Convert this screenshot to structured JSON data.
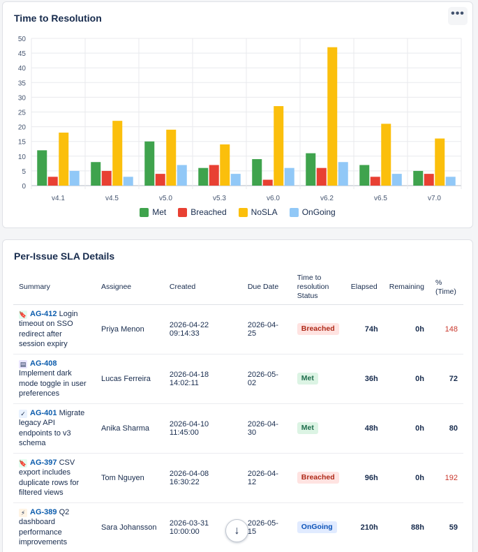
{
  "chart_card": {
    "title": "Time to Resolution",
    "more_label": "•••"
  },
  "chart_data": {
    "type": "bar",
    "title": "Time to Resolution",
    "categories": [
      "v4.1",
      "v4.5",
      "v5.0",
      "v5.3",
      "v6.0",
      "v6.2",
      "v6.5",
      "v7.0"
    ],
    "series": [
      {
        "name": "Met",
        "color": "#3fa34d",
        "values": [
          12,
          8,
          15,
          6,
          9,
          11,
          7,
          5
        ]
      },
      {
        "name": "Breached",
        "color": "#e84033",
        "values": [
          3,
          5,
          4,
          7,
          2,
          6,
          3,
          4
        ]
      },
      {
        "name": "NoSLA",
        "color": "#fbbf0c",
        "values": [
          18,
          22,
          19,
          14,
          27,
          47,
          21,
          16
        ]
      },
      {
        "name": "OnGoing",
        "color": "#91c8f7",
        "values": [
          5,
          3,
          7,
          4,
          6,
          8,
          4,
          3
        ]
      }
    ],
    "yticks": [
      0,
      5,
      10,
      15,
      20,
      25,
      30,
      35,
      40,
      45,
      50
    ],
    "ylim": [
      0,
      50
    ],
    "grid": true,
    "legend": "bottom"
  },
  "table_card": {
    "title": "Per-Issue SLA Details",
    "headers": {
      "summary": "Summary",
      "assignee": "Assignee",
      "created": "Created",
      "due": "Due Date",
      "status_line1": "Time to",
      "status_line2": "resolution",
      "status_line3": "Status",
      "elapsed": "Elapsed",
      "remaining": "Remaining",
      "pct_line1": "%",
      "pct_line2": "(Time)"
    },
    "rows": [
      {
        "icon": "🔖",
        "icon_name": "story-icon",
        "icon_bg": "#e3fcef",
        "key": "AG-412",
        "summary": "Login timeout on SSO redirect after session expiry",
        "assignee": "Priya Menon",
        "created": "2026-04-22 09:14:33",
        "due": "2026-04-25",
        "status": "Breached",
        "status_class": "badge-breached",
        "elapsed": "74h",
        "remaining": "0h",
        "pct": "148",
        "pct_class": "pct-red"
      },
      {
        "icon": "▤",
        "icon_name": "epic-icon",
        "icon_bg": "#eae6ff",
        "key": "AG-408",
        "summary": "Implement dark mode toggle in user preferences",
        "assignee": "Lucas Ferreira",
        "created": "2026-04-18 14:02:11",
        "due": "2026-05-02",
        "status": "Met",
        "status_class": "badge-met",
        "elapsed": "36h",
        "remaining": "0h",
        "pct": "72",
        "pct_class": "pct-normal"
      },
      {
        "icon": "✓",
        "icon_name": "task-icon",
        "icon_bg": "#e9f2ff",
        "key": "AG-401",
        "summary": "Migrate legacy API endpoints to v3 schema",
        "assignee": "Anika Sharma",
        "created": "2026-04-10 11:45:00",
        "due": "2026-04-30",
        "status": "Met",
        "status_class": "badge-met",
        "elapsed": "48h",
        "remaining": "0h",
        "pct": "80",
        "pct_class": "pct-normal"
      },
      {
        "icon": "🔖",
        "icon_name": "story-icon",
        "icon_bg": "#e3fcef",
        "key": "AG-397",
        "summary": "CSV export includes duplicate rows for filtered views",
        "assignee": "Tom Nguyen",
        "created": "2026-04-08 16:30:22",
        "due": "2026-04-12",
        "status": "Breached",
        "status_class": "badge-breached",
        "elapsed": "96h",
        "remaining": "0h",
        "pct": "192",
        "pct_class": "pct-red"
      },
      {
        "icon": "⚡",
        "icon_name": "lightning-icon",
        "icon_bg": "#fff4e5",
        "key": "AG-389",
        "summary": "Q2 dashboard performance improvements",
        "assignee": "Sara Johansson",
        "created": "2026-03-31 10:00:00",
        "due": "2026-05-15",
        "status": "OnGoing",
        "status_class": "badge-ongoing",
        "elapsed": "210h",
        "remaining": "88h",
        "pct": "59",
        "pct_class": "pct-normal"
      }
    ]
  },
  "scroll_button": {
    "label": "↓"
  }
}
